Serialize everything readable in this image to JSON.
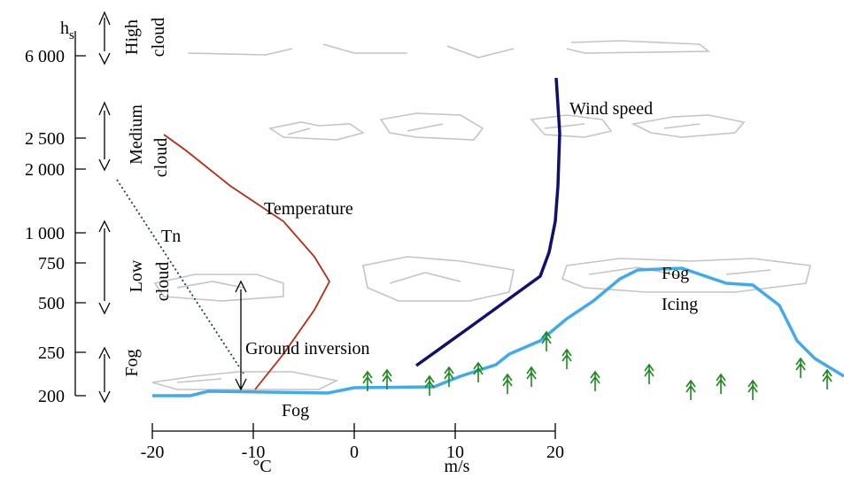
{
  "y_axis": {
    "label": "h",
    "label_sub": "s",
    "ticks": [
      "6 000",
      "2 500",
      "2 000",
      "1 000",
      "750",
      "500",
      "250",
      "200"
    ]
  },
  "x_axis": {
    "ticks": [
      "-20",
      "-10",
      "0",
      "10",
      "20"
    ],
    "unit_left": "°C",
    "unit_right": "m/s"
  },
  "layers": [
    {
      "lines": [
        "High",
        "cloud"
      ]
    },
    {
      "lines": [
        "Medium",
        "cloud"
      ]
    },
    {
      "lines": [
        "Low",
        "cloud"
      ]
    },
    {
      "lines": [
        "Fog"
      ]
    }
  ],
  "curves": {
    "temperature": "Temperature",
    "tn": "Tn",
    "wind_speed": "Wind speed"
  },
  "annotations": {
    "ground_inversion": "Ground inversion",
    "fog_low": "Fog",
    "fog_high": "Fog",
    "icing": "Icing"
  }
}
